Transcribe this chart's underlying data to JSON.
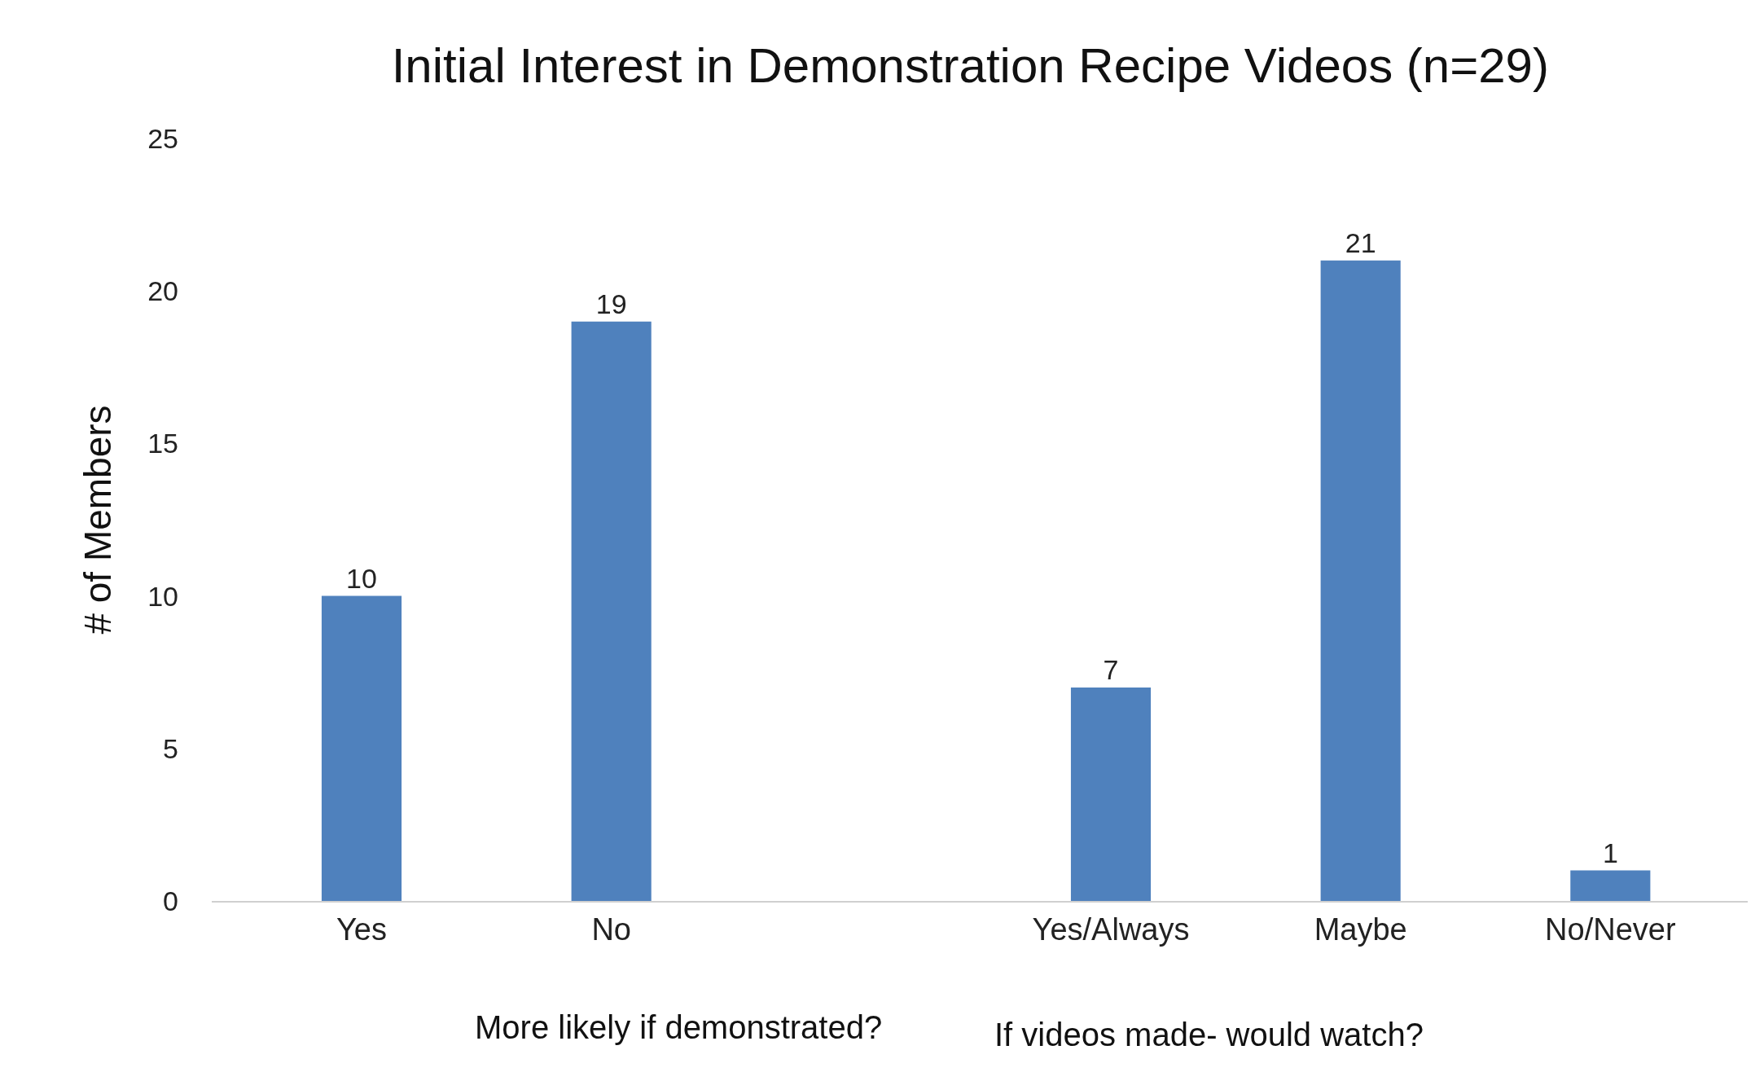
{
  "chart_data": {
    "type": "bar",
    "title": "Initial Interest in Demonstration Recipe Videos (n=29)",
    "ylabel": "# of Members",
    "categories": [
      "Yes",
      "No",
      null,
      "Yes/Always",
      "Maybe",
      "No/Never"
    ],
    "values": [
      10,
      19,
      null,
      7,
      21,
      1
    ],
    "color": "#4f81bd",
    "ylim": [
      0,
      25
    ],
    "yticks": [
      0,
      5,
      10,
      15,
      20,
      25
    ],
    "grid": false,
    "data_labels": true,
    "annotations": [
      "More likely if demonstrated?",
      "If videos made- would watch?"
    ]
  }
}
